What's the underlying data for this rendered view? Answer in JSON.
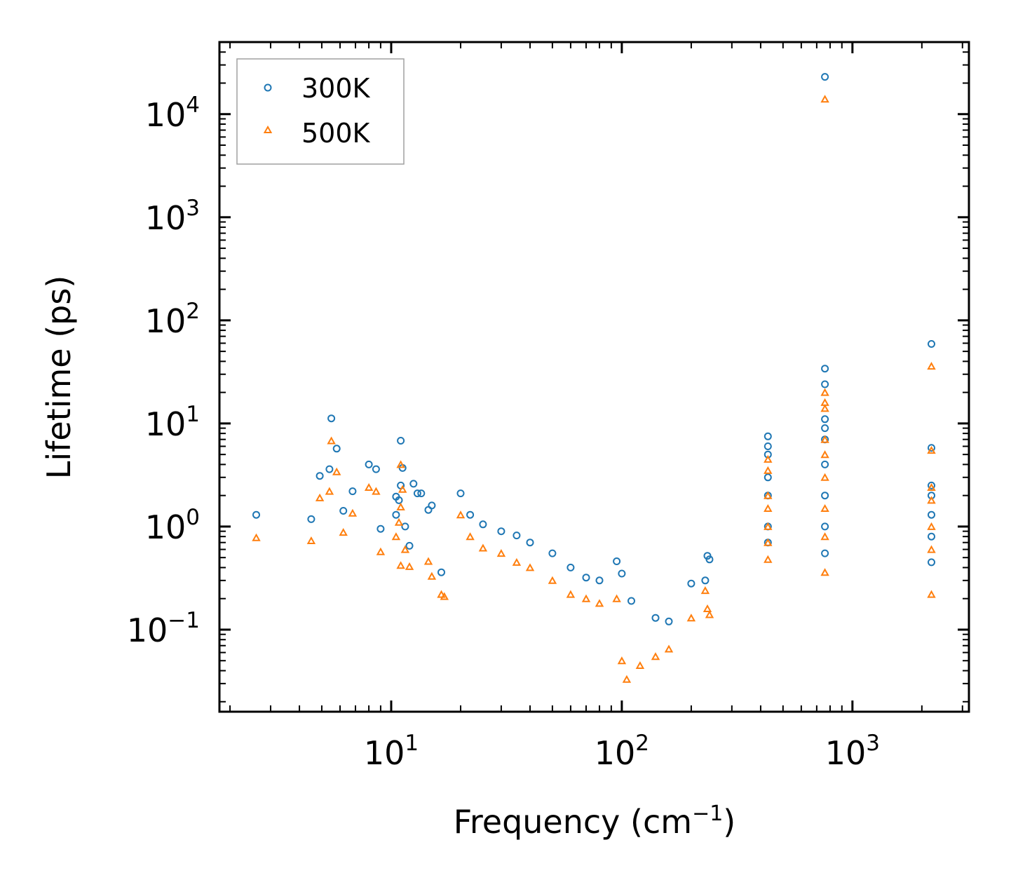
{
  "chart_data": {
    "type": "scatter",
    "xscale": "log",
    "yscale": "log",
    "xlim": [
      1.8,
      3200
    ],
    "ylim": [
      0.016,
      50000
    ],
    "xlabel": {
      "base": "Frequency (cm",
      "sup": "−1",
      "tail": ")"
    },
    "ylabel": "Lifetime (ps)",
    "legend_position": "top-left",
    "x_ticks": [
      {
        "value": 10,
        "base": "10",
        "exp": "1"
      },
      {
        "value": 100,
        "base": "10",
        "exp": "2"
      },
      {
        "value": 1000,
        "base": "10",
        "exp": "3"
      }
    ],
    "y_ticks": [
      {
        "value": 0.1,
        "base": "10",
        "exp": "−1"
      },
      {
        "value": 1,
        "base": "10",
        "exp": "0"
      },
      {
        "value": 10,
        "base": "10",
        "exp": "1"
      },
      {
        "value": 100,
        "base": "10",
        "exp": "2"
      },
      {
        "value": 1000,
        "base": "10",
        "exp": "3"
      },
      {
        "value": 10000,
        "base": "10",
        "exp": "4"
      }
    ],
    "series": [
      {
        "name": "300K",
        "marker": "circle",
        "color": "#1f77b4",
        "points": [
          [
            2.6,
            1.3
          ],
          [
            4.5,
            1.18
          ],
          [
            4.9,
            3.1
          ],
          [
            5.4,
            3.6
          ],
          [
            5.5,
            11.2
          ],
          [
            5.8,
            5.7
          ],
          [
            6.2,
            1.42
          ],
          [
            6.8,
            2.2
          ],
          [
            8.0,
            4.0
          ],
          [
            8.6,
            3.6
          ],
          [
            9.0,
            0.95
          ],
          [
            10.5,
            1.3
          ],
          [
            10.5,
            1.95
          ],
          [
            10.8,
            1.8
          ],
          [
            11.0,
            6.8
          ],
          [
            11.0,
            2.5
          ],
          [
            11.2,
            3.7
          ],
          [
            11.5,
            1.0
          ],
          [
            12.0,
            0.65
          ],
          [
            12.5,
            2.6
          ],
          [
            13.0,
            2.1
          ],
          [
            13.5,
            2.1
          ],
          [
            14.5,
            1.45
          ],
          [
            15.0,
            1.6
          ],
          [
            16.5,
            0.36
          ],
          [
            20.0,
            2.1
          ],
          [
            22,
            1.3
          ],
          [
            25,
            1.05
          ],
          [
            30,
            0.9
          ],
          [
            35,
            0.82
          ],
          [
            40,
            0.7
          ],
          [
            50,
            0.55
          ],
          [
            60,
            0.4
          ],
          [
            70,
            0.32
          ],
          [
            80,
            0.3
          ],
          [
            95,
            0.46
          ],
          [
            100,
            0.35
          ],
          [
            110,
            0.19
          ],
          [
            140,
            0.13
          ],
          [
            160,
            0.12
          ],
          [
            200,
            0.28
          ],
          [
            230,
            0.3
          ],
          [
            235,
            0.52
          ],
          [
            240,
            0.48
          ],
          [
            430,
            7.5
          ],
          [
            430,
            6.0
          ],
          [
            430,
            5.0
          ],
          [
            430,
            3.0
          ],
          [
            430,
            2.0
          ],
          [
            430,
            1.0
          ],
          [
            430,
            0.7
          ],
          [
            760,
            23000
          ],
          [
            760,
            34
          ],
          [
            760,
            24
          ],
          [
            760,
            11
          ],
          [
            760,
            9.0
          ],
          [
            760,
            7.0
          ],
          [
            760,
            4.0
          ],
          [
            760,
            2.0
          ],
          [
            760,
            1.0
          ],
          [
            760,
            0.55
          ],
          [
            2200,
            59
          ],
          [
            2200,
            5.8
          ],
          [
            2200,
            2.5
          ],
          [
            2200,
            2.0
          ],
          [
            2200,
            1.3
          ],
          [
            2200,
            0.8
          ],
          [
            2200,
            0.45
          ]
        ]
      },
      {
        "name": "500K",
        "marker": "triangle",
        "color": "#ff7f0e",
        "points": [
          [
            2.6,
            0.78
          ],
          [
            4.5,
            0.73
          ],
          [
            4.9,
            1.9
          ],
          [
            5.4,
            2.2
          ],
          [
            5.5,
            6.8
          ],
          [
            5.8,
            3.4
          ],
          [
            6.2,
            0.88
          ],
          [
            6.8,
            1.35
          ],
          [
            8.0,
            2.4
          ],
          [
            8.6,
            2.2
          ],
          [
            9.0,
            0.57
          ],
          [
            10.5,
            0.8
          ],
          [
            10.8,
            1.1
          ],
          [
            11.0,
            4.0
          ],
          [
            11.0,
            1.55
          ],
          [
            11.2,
            2.3
          ],
          [
            11.5,
            0.6
          ],
          [
            11.0,
            0.42
          ],
          [
            12.0,
            0.41
          ],
          [
            14.5,
            0.46
          ],
          [
            15.0,
            0.33
          ],
          [
            16.5,
            0.22
          ],
          [
            17.0,
            0.21
          ],
          [
            20.0,
            1.3
          ],
          [
            22,
            0.8
          ],
          [
            25,
            0.62
          ],
          [
            30,
            0.55
          ],
          [
            35,
            0.45
          ],
          [
            40,
            0.4
          ],
          [
            50,
            0.3
          ],
          [
            60,
            0.22
          ],
          [
            70,
            0.2
          ],
          [
            80,
            0.18
          ],
          [
            95,
            0.2
          ],
          [
            100,
            0.05
          ],
          [
            105,
            0.033
          ],
          [
            120,
            0.045
          ],
          [
            140,
            0.055
          ],
          [
            160,
            0.065
          ],
          [
            200,
            0.13
          ],
          [
            230,
            0.24
          ],
          [
            235,
            0.16
          ],
          [
            240,
            0.14
          ],
          [
            430,
            4.5
          ],
          [
            430,
            3.5
          ],
          [
            430,
            2.0
          ],
          [
            430,
            1.5
          ],
          [
            430,
            1.0
          ],
          [
            430,
            0.7
          ],
          [
            430,
            0.48
          ],
          [
            760,
            14000
          ],
          [
            760,
            20
          ],
          [
            760,
            16
          ],
          [
            760,
            14
          ],
          [
            760,
            7.0
          ],
          [
            760,
            5.0
          ],
          [
            760,
            3.0
          ],
          [
            760,
            1.5
          ],
          [
            760,
            0.8
          ],
          [
            760,
            0.36
          ],
          [
            2200,
            36
          ],
          [
            2200,
            5.5
          ],
          [
            2200,
            2.4
          ],
          [
            2200,
            1.8
          ],
          [
            2200,
            1.0
          ],
          [
            2200,
            0.6
          ],
          [
            2200,
            0.22
          ]
        ]
      }
    ]
  }
}
